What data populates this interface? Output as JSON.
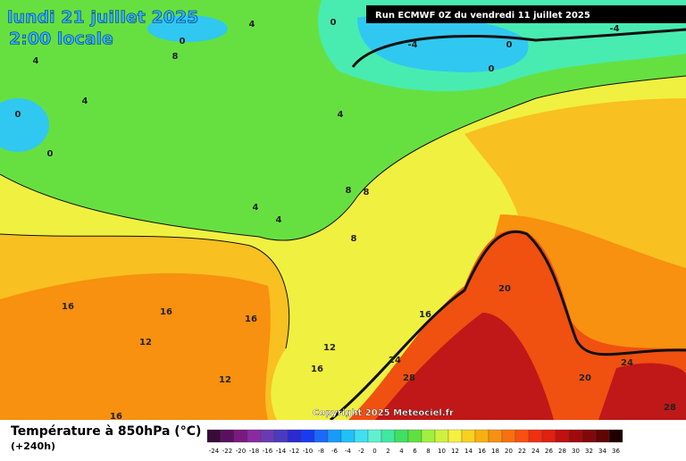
{
  "header": {
    "title": "lundi 21 juillet 2025",
    "time": "2:00 locale",
    "run": "Run ECMWF 0Z du vendredi 11 juillet 2025"
  },
  "map": {
    "copyright": "Copyright 2025 Meteociel.fr",
    "contour_labels": [
      4,
      0,
      0,
      8,
      4,
      -4,
      0,
      -4,
      0,
      0,
      4,
      0,
      4,
      8,
      8,
      4,
      4,
      8,
      16,
      16,
      16,
      12,
      16,
      20,
      12,
      16,
      12,
      24,
      28,
      24,
      20,
      16,
      28
    ]
  },
  "legend": {
    "title": "Température à 850hPa (°C)",
    "lead": "(+240h)",
    "ticks": [
      -24,
      -22,
      -20,
      -18,
      -16,
      -14,
      -12,
      -10,
      -8,
      -6,
      -4,
      -2,
      0,
      2,
      4,
      6,
      8,
      10,
      12,
      14,
      16,
      18,
      20,
      22,
      24,
      26,
      28,
      30,
      32,
      34,
      36
    ],
    "colors": [
      "#3a0a3a",
      "#5a1060",
      "#7a1a80",
      "#8a2aa0",
      "#6a3ab0",
      "#4a3ac0",
      "#2a2ad0",
      "#1a3af0",
      "#1a6af8",
      "#1a9af8",
      "#20c0f8",
      "#40e0f0",
      "#60f0d0",
      "#40e8a0",
      "#40e060",
      "#60e040",
      "#a0f040",
      "#d0f040",
      "#f8f040",
      "#f8d020",
      "#f8b010",
      "#f89010",
      "#f87010",
      "#f85010",
      "#f03010",
      "#e02010",
      "#c01010",
      "#a00a0a",
      "#800808",
      "#600404",
      "#200000"
    ]
  }
}
